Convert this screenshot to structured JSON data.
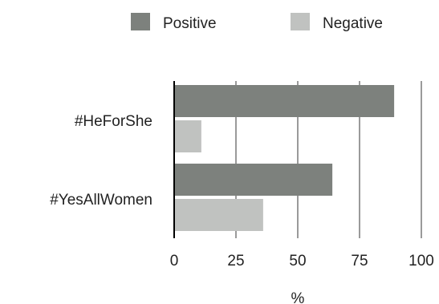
{
  "chart_data": {
    "type": "bar",
    "orientation": "horizontal",
    "categories": [
      "#HeForShe",
      "#YesAllWomen"
    ],
    "series": [
      {
        "name": "Positive",
        "values": [
          89,
          64
        ],
        "color": "#7d817d"
      },
      {
        "name": "Negative",
        "values": [
          11,
          36
        ],
        "color": "#c0c2c0"
      }
    ],
    "xlabel": "%",
    "ylabel": "",
    "xlim": [
      0,
      100
    ],
    "xticks": [
      0,
      25,
      50,
      75,
      100
    ],
    "grid": "vertical",
    "legend_position": "top"
  }
}
